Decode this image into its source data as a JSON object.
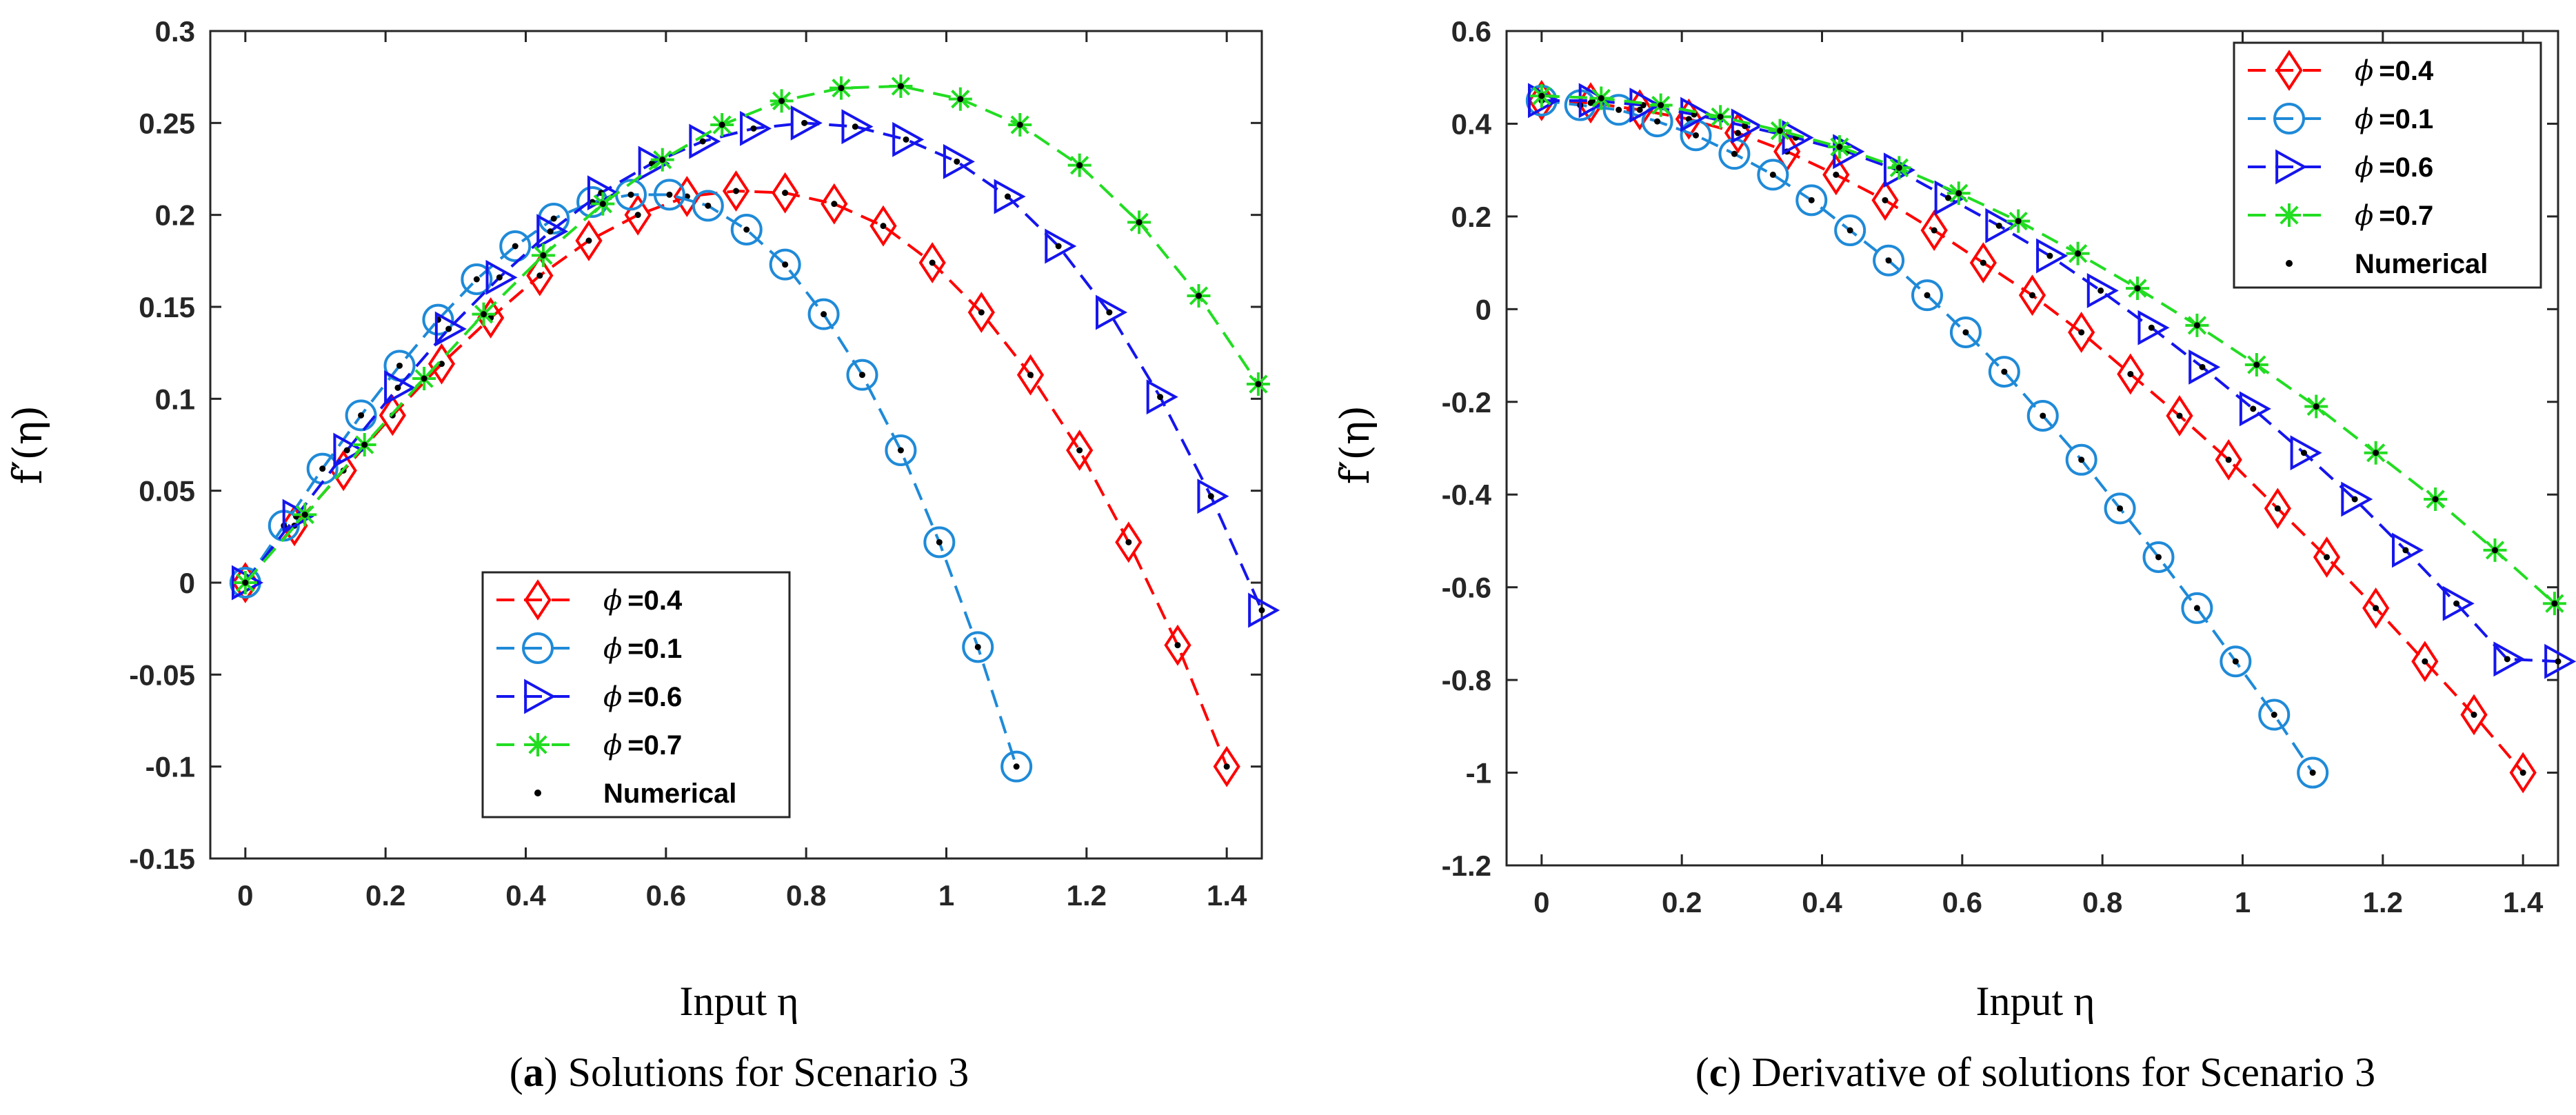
{
  "chart_data": [
    {
      "type": "line",
      "caption_letter": "a",
      "caption_text": ") Solutions for Scenario 3",
      "xlabel": "Input η",
      "ylabel": "f′(η)",
      "xlim": [
        -0.05,
        1.45
      ],
      "ylim": [
        -0.15,
        0.3
      ],
      "xticks": [
        0,
        0.2,
        0.4,
        0.6,
        0.8,
        1,
        1.2,
        1.4
      ],
      "yticks": [
        -0.15,
        -0.1,
        -0.05,
        0,
        0.05,
        0.1,
        0.15,
        0.2,
        0.25,
        0.3
      ],
      "legend_position": "lower-center",
      "numerical_label": "Numerical",
      "series": [
        {
          "name": "=0.4",
          "symbol": "ϕ",
          "color": "#ff0000",
          "marker": "diamond",
          "x": [
            0,
            0.07,
            0.14,
            0.21,
            0.28,
            0.35,
            0.42,
            0.49,
            0.56,
            0.63,
            0.7,
            0.77,
            0.84,
            0.91,
            0.98,
            1.05,
            1.12,
            1.19,
            1.26,
            1.33,
            1.4
          ],
          "y": [
            0,
            0.031,
            0.061,
            0.091,
            0.119,
            0.144,
            0.167,
            0.186,
            0.2,
            0.21,
            0.213,
            0.212,
            0.206,
            0.194,
            0.174,
            0.147,
            0.113,
            0.072,
            0.022,
            -0.034,
            -0.1
          ]
        },
        {
          "name": "=0.1",
          "symbol": "ϕ",
          "color": "#1f8ad8",
          "marker": "circle",
          "x": [
            0,
            0.055,
            0.11,
            0.165,
            0.22,
            0.275,
            0.33,
            0.385,
            0.44,
            0.495,
            0.55,
            0.605,
            0.66,
            0.715,
            0.77,
            0.825,
            0.88,
            0.935,
            0.99,
            1.045,
            1.1
          ],
          "y": [
            0,
            0.031,
            0.062,
            0.091,
            0.118,
            0.143,
            0.165,
            0.183,
            0.198,
            0.207,
            0.211,
            0.211,
            0.205,
            0.192,
            0.173,
            0.146,
            0.113,
            0.072,
            0.022,
            -0.035,
            -0.1
          ]
        },
        {
          "name": "=0.6",
          "symbol": "ϕ",
          "color": "#1515ee",
          "marker": "triangle-right",
          "x": [
            0,
            0.0725,
            0.145,
            0.2175,
            0.29,
            0.3625,
            0.435,
            0.5075,
            0.58,
            0.6525,
            0.725,
            0.7975,
            0.87,
            0.9425,
            1.015,
            1.0875,
            1.16,
            1.2325,
            1.305,
            1.3775,
            1.45
          ],
          "y": [
            0,
            0.036,
            0.072,
            0.106,
            0.138,
            0.166,
            0.191,
            0.212,
            0.228,
            0.24,
            0.247,
            0.25,
            0.248,
            0.241,
            0.229,
            0.21,
            0.183,
            0.147,
            0.101,
            0.047,
            -0.015
          ]
        },
        {
          "name": "=0.7",
          "symbol": "ϕ",
          "color": "#22dd22",
          "marker": "star",
          "x": [
            0,
            0.085,
            0.17,
            0.255,
            0.34,
            0.425,
            0.51,
            0.595,
            0.68,
            0.765,
            0.85,
            0.935,
            1.02,
            1.105,
            1.19,
            1.275,
            1.36,
            1.445
          ],
          "y": [
            0,
            0.037,
            0.075,
            0.111,
            0.146,
            0.178,
            0.206,
            0.23,
            0.249,
            0.262,
            0.269,
            0.27,
            0.263,
            0.249,
            0.227,
            0.196,
            0.156,
            0.108
          ]
        }
      ]
    },
    {
      "type": "line",
      "caption_letter": "c",
      "caption_text": ") Derivative of solutions for Scenario 3",
      "xlabel": "Input η",
      "ylabel": "f′(η)",
      "xlim": [
        -0.05,
        1.45
      ],
      "ylim": [
        -1.2,
        0.6
      ],
      "xticks": [
        0,
        0.2,
        0.4,
        0.6,
        0.8,
        1,
        1.2,
        1.4
      ],
      "yticks": [
        -1.2,
        -1,
        -0.8,
        -0.6,
        -0.4,
        -0.2,
        0,
        0.2,
        0.4,
        0.6
      ],
      "legend_position": "top-right",
      "numerical_label": "Numerical",
      "series": [
        {
          "name": "=0.4",
          "symbol": "ϕ",
          "color": "#ff0000",
          "marker": "diamond",
          "x": [
            0,
            0.07,
            0.14,
            0.21,
            0.28,
            0.35,
            0.42,
            0.49,
            0.56,
            0.63,
            0.7,
            0.77,
            0.84,
            0.91,
            0.98,
            1.05,
            1.12,
            1.19,
            1.26,
            1.33,
            1.4
          ],
          "y": [
            0.45,
            0.445,
            0.43,
            0.41,
            0.38,
            0.34,
            0.29,
            0.235,
            0.17,
            0.1,
            0.03,
            -0.05,
            -0.14,
            -0.23,
            -0.325,
            -0.43,
            -0.535,
            -0.645,
            -0.76,
            -0.875,
            -1.0
          ]
        },
        {
          "name": "=0.1",
          "symbol": "ϕ",
          "color": "#1f8ad8",
          "marker": "circle",
          "x": [
            0,
            0.055,
            0.11,
            0.165,
            0.22,
            0.275,
            0.33,
            0.385,
            0.44,
            0.495,
            0.55,
            0.605,
            0.66,
            0.715,
            0.77,
            0.825,
            0.88,
            0.935,
            0.99,
            1.045,
            1.1
          ],
          "y": [
            0.45,
            0.44,
            0.43,
            0.405,
            0.375,
            0.335,
            0.29,
            0.235,
            0.17,
            0.105,
            0.03,
            -0.05,
            -0.135,
            -0.23,
            -0.325,
            -0.43,
            -0.535,
            -0.645,
            -0.76,
            -0.875,
            -1.0
          ]
        },
        {
          "name": "=0.6",
          "symbol": "ϕ",
          "color": "#1515ee",
          "marker": "triangle-right",
          "x": [
            0,
            0.0725,
            0.145,
            0.2175,
            0.29,
            0.3625,
            0.435,
            0.5075,
            0.58,
            0.6525,
            0.725,
            0.7975,
            0.87,
            0.9425,
            1.015,
            1.0875,
            1.16,
            1.2325,
            1.305,
            1.3775,
            1.45
          ],
          "y": [
            0.45,
            0.45,
            0.44,
            0.42,
            0.395,
            0.37,
            0.34,
            0.3,
            0.24,
            0.18,
            0.115,
            0.04,
            -0.04,
            -0.125,
            -0.215,
            -0.31,
            -0.41,
            -0.52,
            -0.635,
            -0.755,
            -0.76
          ]
        },
        {
          "name": "=0.7",
          "symbol": "ϕ",
          "color": "#22dd22",
          "marker": "star",
          "x": [
            0,
            0.085,
            0.17,
            0.255,
            0.34,
            0.425,
            0.51,
            0.595,
            0.68,
            0.765,
            0.85,
            0.935,
            1.02,
            1.105,
            1.19,
            1.275,
            1.36,
            1.445
          ],
          "y": [
            0.46,
            0.455,
            0.44,
            0.415,
            0.385,
            0.35,
            0.305,
            0.25,
            0.19,
            0.12,
            0.045,
            -0.035,
            -0.12,
            -0.21,
            -0.31,
            -0.41,
            -0.52,
            -0.635
          ]
        }
      ]
    }
  ]
}
